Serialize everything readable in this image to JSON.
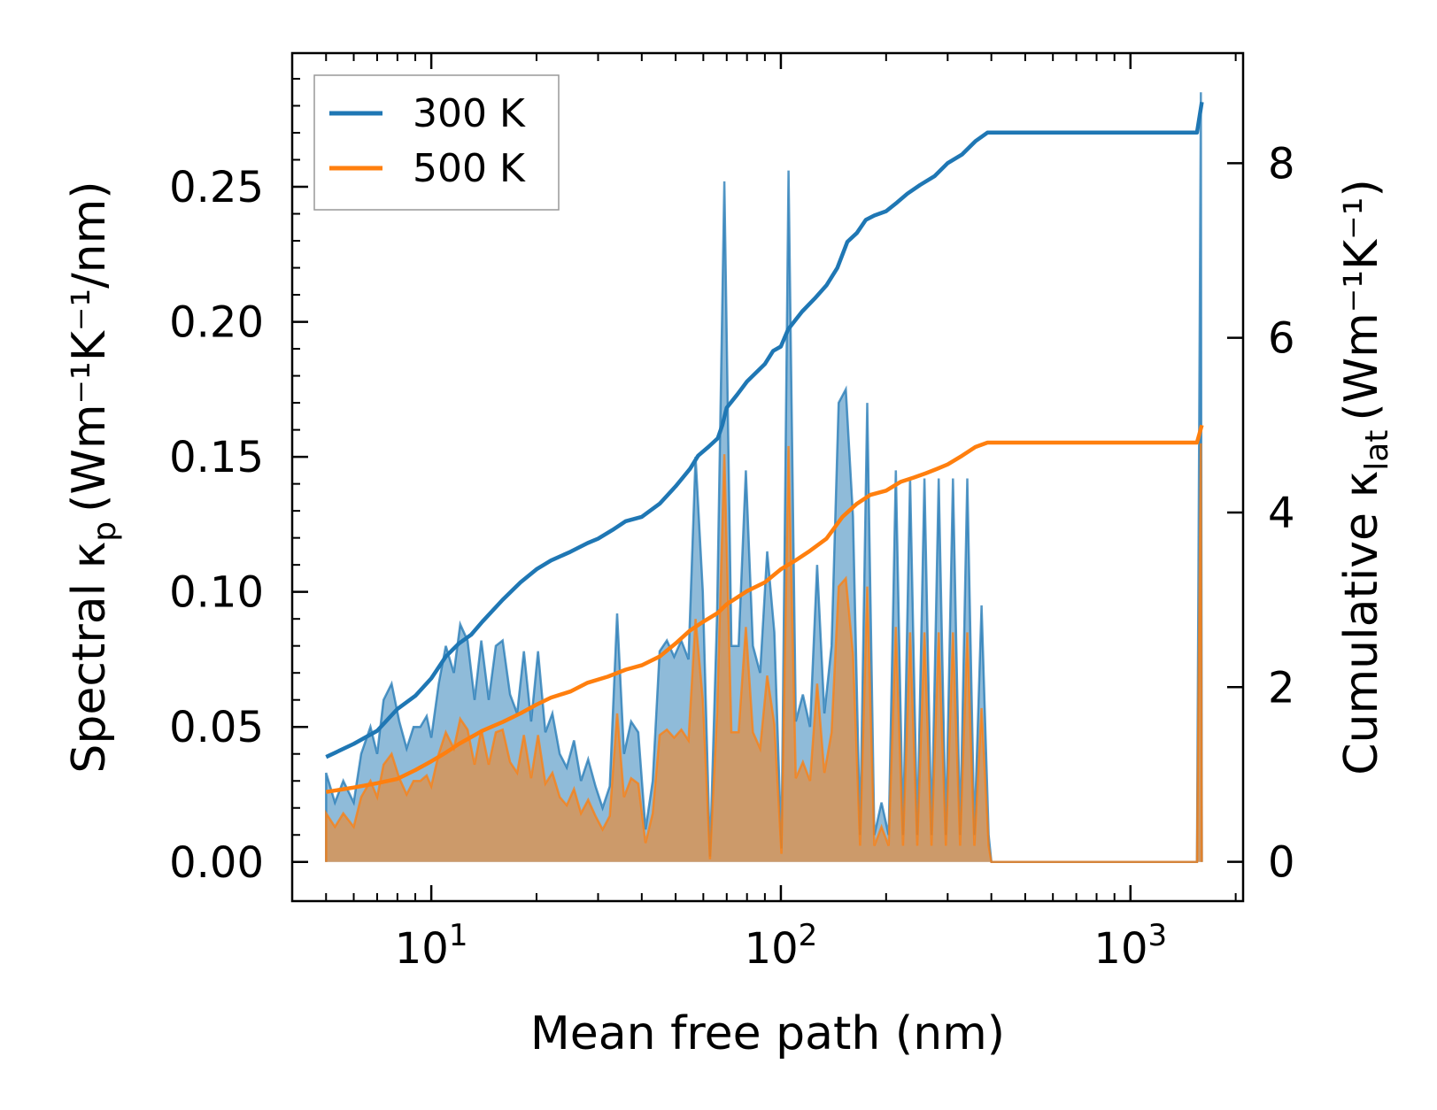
{
  "chart_data": {
    "type": "line",
    "xscale": "log",
    "xlabel": "Mean free path (nm)",
    "ylabel_left_main": "Spectral κ",
    "ylabel_left_sub": "p",
    "ylabel_left_units": "(Wm⁻¹K⁻¹/nm)",
    "ylabel_right_main": "Cumulative κ",
    "ylabel_right_sub": "lat",
    "ylabel_right_units": "(Wm⁻¹K⁻¹)",
    "xlim": [
      4,
      2100
    ],
    "ylim_left": [
      -0.0145,
      0.2995
    ],
    "ylim_right": [
      -0.45,
      9.26
    ],
    "x_ticks": [
      {
        "value": 10,
        "base": "10",
        "exp": "1"
      },
      {
        "value": 100,
        "base": "10",
        "exp": "2"
      },
      {
        "value": 1000,
        "base": "10",
        "exp": "3"
      }
    ],
    "y_ticks_left": [
      {
        "value": 0.0,
        "label": "0.00"
      },
      {
        "value": 0.05,
        "label": "0.05"
      },
      {
        "value": 0.1,
        "label": "0.10"
      },
      {
        "value": 0.15,
        "label": "0.15"
      },
      {
        "value": 0.2,
        "label": "0.20"
      },
      {
        "value": 0.25,
        "label": "0.25"
      }
    ],
    "y_ticks_right": [
      {
        "value": 0,
        "label": "0"
      },
      {
        "value": 2,
        "label": "2"
      },
      {
        "value": 4,
        "label": "4"
      },
      {
        "value": 6,
        "label": "6"
      },
      {
        "value": 8,
        "label": "8"
      }
    ],
    "legend": {
      "position": "upper-left",
      "entries": [
        "300 K",
        "500 K"
      ]
    },
    "colors": {
      "300 K": "#1f77b4",
      "500 K": "#ff7f0e",
      "fill_300": "#1f77b4",
      "fill_500": "#ff7f0e"
    },
    "spectral": [
      {
        "name": "300 K",
        "axis": "left",
        "points": [
          [
            5,
            0
          ],
          [
            5,
            0.033
          ],
          [
            5.3,
            0.022
          ],
          [
            5.6,
            0.03
          ],
          [
            6,
            0.022
          ],
          [
            6.3,
            0.04
          ],
          [
            6.7,
            0.05
          ],
          [
            7,
            0.04
          ],
          [
            7.3,
            0.06
          ],
          [
            7.7,
            0.066
          ],
          [
            8.1,
            0.052
          ],
          [
            8.5,
            0.042
          ],
          [
            8.9,
            0.05
          ],
          [
            9.3,
            0.05
          ],
          [
            9.7,
            0.054
          ],
          [
            10,
            0.046
          ],
          [
            10.5,
            0.066
          ],
          [
            11,
            0.08
          ],
          [
            11.6,
            0.07
          ],
          [
            12.1,
            0.088
          ],
          [
            12.7,
            0.082
          ],
          [
            13.3,
            0.06
          ],
          [
            13.9,
            0.082
          ],
          [
            14.6,
            0.06
          ],
          [
            15.3,
            0.08
          ],
          [
            16,
            0.082
          ],
          [
            16.8,
            0.062
          ],
          [
            17.6,
            0.055
          ],
          [
            18.4,
            0.078
          ],
          [
            19.3,
            0.052
          ],
          [
            20.2,
            0.078
          ],
          [
            21.2,
            0.048
          ],
          [
            22.2,
            0.055
          ],
          [
            23.3,
            0.04
          ],
          [
            24.4,
            0.035
          ],
          [
            25.6,
            0.045
          ],
          [
            26.8,
            0.03
          ],
          [
            28.1,
            0.038
          ],
          [
            29.5,
            0.028
          ],
          [
            30.9,
            0.02
          ],
          [
            32.4,
            0.028
          ],
          [
            34,
            0.092
          ],
          [
            35.6,
            0.04
          ],
          [
            37.3,
            0.052
          ],
          [
            39.1,
            0.048
          ],
          [
            41,
            0.012
          ],
          [
            43,
            0.03
          ],
          [
            45,
            0.078
          ],
          [
            47.2,
            0.082
          ],
          [
            49.5,
            0.076
          ],
          [
            51.9,
            0.082
          ],
          [
            54.4,
            0.075
          ],
          [
            57,
            0.15
          ],
          [
            59.8,
            0.1
          ],
          [
            62.7,
            0.002
          ],
          [
            65.7,
            0.092
          ],
          [
            68.9,
            0.252
          ],
          [
            72.2,
            0.08
          ],
          [
            75.7,
            0.08
          ],
          [
            79.4,
            0.145
          ],
          [
            83.2,
            0.08
          ],
          [
            87.2,
            0.07
          ],
          [
            91.4,
            0.115
          ],
          [
            95.8,
            0.085
          ],
          [
            100.4,
            0.005
          ],
          [
            105.2,
            0.256
          ],
          [
            110.3,
            0.052
          ],
          [
            115.6,
            0.062
          ],
          [
            121.2,
            0.05
          ],
          [
            127,
            0.11
          ],
          [
            133.2,
            0.055
          ],
          [
            139.6,
            0.08
          ],
          [
            146.3,
            0.17
          ],
          [
            153.4,
            0.175
          ],
          [
            160.8,
            0.128
          ],
          [
            168.5,
            0.01
          ],
          [
            176.6,
            0.17
          ],
          [
            185.1,
            0.01
          ],
          [
            194,
            0.022
          ],
          [
            203.4,
            0.01
          ],
          [
            213.2,
            0.145
          ],
          [
            223.5,
            0.01
          ],
          [
            234.3,
            0.142
          ],
          [
            245.6,
            0.01
          ],
          [
            257.4,
            0.142
          ],
          [
            269.8,
            0.01
          ],
          [
            282.8,
            0.142
          ],
          [
            296.4,
            0.01
          ],
          [
            310.7,
            0.142
          ],
          [
            325.7,
            0.01
          ],
          [
            341.4,
            0.142
          ],
          [
            357.8,
            0.01
          ],
          [
            375,
            0.095
          ],
          [
            393,
            0.01
          ],
          [
            400,
            0.0
          ],
          [
            1550,
            0.0
          ],
          [
            1590,
            0.285
          ],
          [
            1600,
            0.0
          ]
        ]
      },
      {
        "name": "500 K",
        "axis": "left",
        "points": [
          [
            5,
            0
          ],
          [
            5,
            0.018
          ],
          [
            5.3,
            0.013
          ],
          [
            5.6,
            0.018
          ],
          [
            6,
            0.013
          ],
          [
            6.3,
            0.024
          ],
          [
            6.7,
            0.03
          ],
          [
            7,
            0.024
          ],
          [
            7.3,
            0.036
          ],
          [
            7.7,
            0.04
          ],
          [
            8.1,
            0.031
          ],
          [
            8.5,
            0.025
          ],
          [
            8.9,
            0.03
          ],
          [
            9.3,
            0.03
          ],
          [
            9.7,
            0.032
          ],
          [
            10,
            0.028
          ],
          [
            10.5,
            0.04
          ],
          [
            11,
            0.048
          ],
          [
            11.6,
            0.042
          ],
          [
            12.1,
            0.053
          ],
          [
            12.7,
            0.049
          ],
          [
            13.3,
            0.036
          ],
          [
            13.9,
            0.049
          ],
          [
            14.6,
            0.036
          ],
          [
            15.3,
            0.048
          ],
          [
            16,
            0.049
          ],
          [
            16.8,
            0.037
          ],
          [
            17.6,
            0.033
          ],
          [
            18.4,
            0.047
          ],
          [
            19.3,
            0.031
          ],
          [
            20.2,
            0.047
          ],
          [
            21.2,
            0.029
          ],
          [
            22.2,
            0.033
          ],
          [
            23.3,
            0.024
          ],
          [
            24.4,
            0.021
          ],
          [
            25.6,
            0.027
          ],
          [
            26.8,
            0.018
          ],
          [
            28.1,
            0.023
          ],
          [
            29.5,
            0.017
          ],
          [
            30.9,
            0.012
          ],
          [
            32.4,
            0.017
          ],
          [
            34,
            0.055
          ],
          [
            35.6,
            0.024
          ],
          [
            37.3,
            0.031
          ],
          [
            39.1,
            0.029
          ],
          [
            41,
            0.007
          ],
          [
            43,
            0.018
          ],
          [
            45,
            0.047
          ],
          [
            47.2,
            0.049
          ],
          [
            49.5,
            0.046
          ],
          [
            51.9,
            0.049
          ],
          [
            54.4,
            0.045
          ],
          [
            57,
            0.09
          ],
          [
            59.8,
            0.06
          ],
          [
            62.7,
            0.001
          ],
          [
            65.7,
            0.055
          ],
          [
            68.9,
            0.151
          ],
          [
            72.2,
            0.048
          ],
          [
            75.7,
            0.048
          ],
          [
            79.4,
            0.087
          ],
          [
            83.2,
            0.048
          ],
          [
            87.2,
            0.042
          ],
          [
            91.4,
            0.069
          ],
          [
            95.8,
            0.051
          ],
          [
            100.4,
            0.003
          ],
          [
            105.2,
            0.154
          ],
          [
            110.3,
            0.031
          ],
          [
            115.6,
            0.037
          ],
          [
            121.2,
            0.03
          ],
          [
            127,
            0.066
          ],
          [
            133.2,
            0.033
          ],
          [
            139.6,
            0.048
          ],
          [
            146.3,
            0.102
          ],
          [
            153.4,
            0.105
          ],
          [
            160.8,
            0.077
          ],
          [
            168.5,
            0.006
          ],
          [
            176.6,
            0.102
          ],
          [
            185.1,
            0.006
          ],
          [
            194,
            0.013
          ],
          [
            203.4,
            0.006
          ],
          [
            213.2,
            0.087
          ],
          [
            223.5,
            0.006
          ],
          [
            234.3,
            0.085
          ],
          [
            245.6,
            0.006
          ],
          [
            257.4,
            0.085
          ],
          [
            269.8,
            0.006
          ],
          [
            282.8,
            0.085
          ],
          [
            296.4,
            0.006
          ],
          [
            310.7,
            0.085
          ],
          [
            325.7,
            0.006
          ],
          [
            341.4,
            0.085
          ],
          [
            357.8,
            0.006
          ],
          [
            375,
            0.057
          ],
          [
            393,
            0.006
          ],
          [
            400,
            0.0
          ],
          [
            1550,
            0.0
          ],
          [
            1590,
            0.155
          ],
          [
            1600,
            0.0
          ]
        ]
      }
    ],
    "cumulative": [
      {
        "name": "300 K",
        "axis": "right",
        "points": [
          [
            5,
            1.2
          ],
          [
            6,
            1.35
          ],
          [
            7,
            1.5
          ],
          [
            8,
            1.75
          ],
          [
            9,
            1.9
          ],
          [
            10,
            2.1
          ],
          [
            11,
            2.35
          ],
          [
            12,
            2.5
          ],
          [
            13,
            2.6
          ],
          [
            14,
            2.75
          ],
          [
            16,
            3.0
          ],
          [
            18,
            3.2
          ],
          [
            20,
            3.35
          ],
          [
            22,
            3.45
          ],
          [
            25,
            3.55
          ],
          [
            28,
            3.65
          ],
          [
            30,
            3.7
          ],
          [
            33,
            3.8
          ],
          [
            36,
            3.9
          ],
          [
            40,
            3.95
          ],
          [
            45,
            4.1
          ],
          [
            50,
            4.3
          ],
          [
            55,
            4.5
          ],
          [
            58,
            4.65
          ],
          [
            62,
            4.75
          ],
          [
            66,
            4.85
          ],
          [
            68,
            5.0
          ],
          [
            70,
            5.2
          ],
          [
            75,
            5.35
          ],
          [
            80,
            5.5
          ],
          [
            90,
            5.7
          ],
          [
            95,
            5.85
          ],
          [
            100,
            5.9
          ],
          [
            105,
            6.1
          ],
          [
            115,
            6.3
          ],
          [
            125,
            6.45
          ],
          [
            135,
            6.6
          ],
          [
            145,
            6.8
          ],
          [
            155,
            7.1
          ],
          [
            165,
            7.2
          ],
          [
            175,
            7.35
          ],
          [
            185,
            7.4
          ],
          [
            200,
            7.45
          ],
          [
            215,
            7.55
          ],
          [
            230,
            7.65
          ],
          [
            250,
            7.75
          ],
          [
            275,
            7.85
          ],
          [
            300,
            8.0
          ],
          [
            330,
            8.1
          ],
          [
            360,
            8.25
          ],
          [
            390,
            8.35
          ],
          [
            1550,
            8.35
          ],
          [
            1600,
            8.7
          ]
        ]
      },
      {
        "name": "500 K",
        "axis": "right",
        "points": [
          [
            5,
            0.8
          ],
          [
            6,
            0.85
          ],
          [
            7,
            0.9
          ],
          [
            8,
            0.95
          ],
          [
            9,
            1.05
          ],
          [
            10,
            1.15
          ],
          [
            11,
            1.25
          ],
          [
            12,
            1.35
          ],
          [
            14,
            1.5
          ],
          [
            16,
            1.6
          ],
          [
            18,
            1.7
          ],
          [
            20,
            1.8
          ],
          [
            22,
            1.88
          ],
          [
            25,
            1.95
          ],
          [
            28,
            2.05
          ],
          [
            32,
            2.12
          ],
          [
            36,
            2.2
          ],
          [
            40,
            2.25
          ],
          [
            45,
            2.35
          ],
          [
            50,
            2.5
          ],
          [
            55,
            2.65
          ],
          [
            60,
            2.75
          ],
          [
            66,
            2.85
          ],
          [
            70,
            2.95
          ],
          [
            80,
            3.1
          ],
          [
            90,
            3.2
          ],
          [
            100,
            3.35
          ],
          [
            110,
            3.45
          ],
          [
            120,
            3.55
          ],
          [
            135,
            3.7
          ],
          [
            150,
            3.95
          ],
          [
            165,
            4.1
          ],
          [
            180,
            4.2
          ],
          [
            200,
            4.25
          ],
          [
            220,
            4.35
          ],
          [
            240,
            4.4
          ],
          [
            260,
            4.45
          ],
          [
            280,
            4.5
          ],
          [
            300,
            4.55
          ],
          [
            330,
            4.65
          ],
          [
            360,
            4.75
          ],
          [
            390,
            4.8
          ],
          [
            1550,
            4.8
          ],
          [
            1600,
            5.0
          ]
        ]
      }
    ]
  }
}
